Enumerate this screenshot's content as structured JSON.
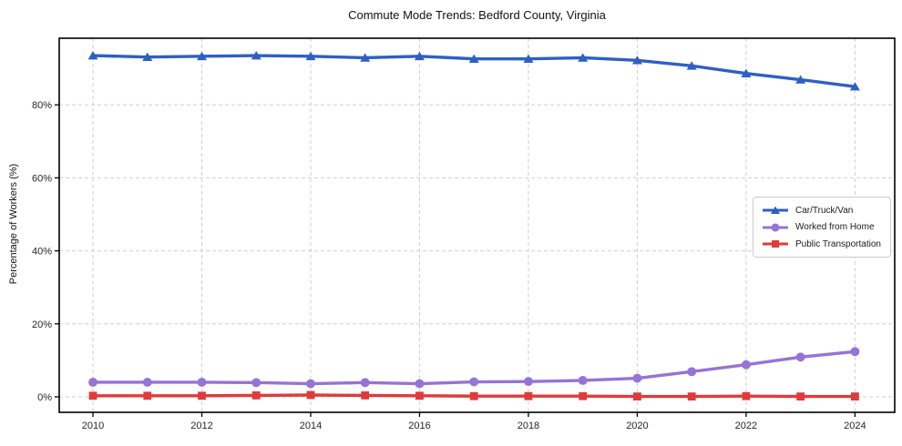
{
  "chart_data": {
    "type": "line",
    "title": "Commute Mode Trends: Bedford County, Virginia",
    "xlabel": "",
    "ylabel": "Percentage of Workers (%)",
    "x": [
      2010,
      2011,
      2012,
      2013,
      2014,
      2015,
      2016,
      2017,
      2018,
      2019,
      2020,
      2021,
      2022,
      2023,
      2024
    ],
    "x_ticks": [
      2010,
      2012,
      2014,
      2016,
      2018,
      2020,
      2022,
      2024
    ],
    "x_tick_labels": [
      "2010",
      "2012",
      "2014",
      "2016",
      "2018",
      "2020",
      "2022",
      "2024"
    ],
    "y_ticks": [
      0,
      20,
      40,
      60,
      80
    ],
    "y_tick_labels": [
      "0%",
      "20%",
      "40%",
      "60%",
      "80%"
    ],
    "xlim": [
      2009.38,
      2024.73
    ],
    "ylim": [
      -4.24,
      98.25
    ],
    "grid": true,
    "grid_style": "dashed",
    "legend_position": "center right",
    "series": [
      {
        "name": "Car/Truck/Van",
        "color": "#2e5fc7",
        "marker": "triangle",
        "values": [
          93.5,
          93.1,
          93.3,
          93.5,
          93.3,
          92.9,
          93.3,
          92.6,
          92.6,
          92.9,
          92.2,
          90.7,
          88.6,
          86.9,
          85.0
        ]
      },
      {
        "name": "Worked from Home",
        "color": "#9673d6",
        "marker": "circle",
        "values": [
          4.0,
          4.0,
          4.0,
          3.9,
          3.6,
          3.9,
          3.6,
          4.1,
          4.2,
          4.5,
          5.1,
          6.9,
          8.8,
          10.9,
          12.4
        ]
      },
      {
        "name": "Public Transportation",
        "color": "#e03b3b",
        "marker": "square",
        "values": [
          0.3,
          0.3,
          0.3,
          0.4,
          0.5,
          0.4,
          0.3,
          0.2,
          0.2,
          0.2,
          0.1,
          0.1,
          0.2,
          0.1,
          0.1
        ]
      }
    ]
  },
  "colors": {
    "background": "#ffffff",
    "grid": "#cfcfcf",
    "spine": "#000000",
    "tick_text": "#262626",
    "legend_border": "#cccccc"
  }
}
